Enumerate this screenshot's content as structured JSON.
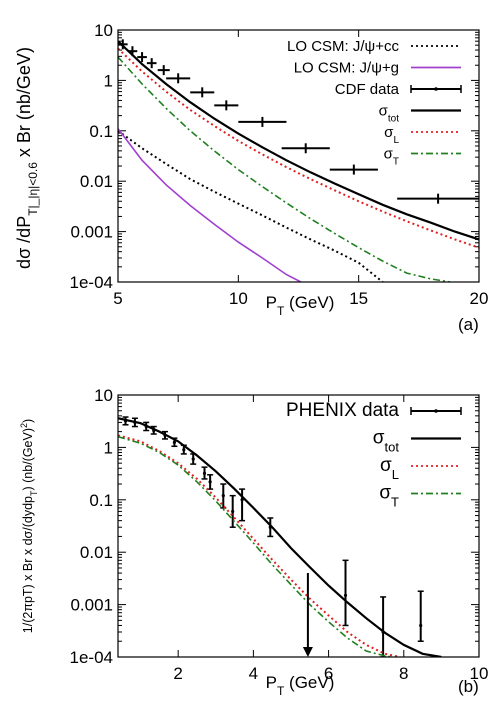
{
  "chart_data": [
    {
      "panel_label": "(a)",
      "type": "line",
      "xlabel": "P_T (GeV)",
      "ylabel": "dσ /dP_T|_|η|<0.6 x Br  (nb/GeV)",
      "xlim": [
        5,
        20
      ],
      "ylim": [
        0.0001,
        10
      ],
      "yscale": "log",
      "xticks": [
        5,
        10,
        15,
        20
      ],
      "yticks": [
        10,
        1,
        0.1,
        0.01,
        0.001,
        0.0001
      ],
      "ytick_labels": [
        "10",
        "1",
        "0.1",
        "0.01",
        "0.001",
        "1e-04"
      ],
      "legend_position": "top-right",
      "series": [
        {
          "name": "LO CSM: J/ψ+cc",
          "style": "dotted",
          "color": "#000000",
          "x": [
            5,
            6,
            7,
            8,
            9,
            10,
            11,
            12,
            13,
            14,
            15,
            16
          ],
          "y": [
            0.1,
            0.045,
            0.022,
            0.011,
            0.0062,
            0.0036,
            0.0021,
            0.0012,
            0.0007,
            0.00042,
            0.00024,
            0.0001
          ]
        },
        {
          "name": "LO CSM: J/ψ+g",
          "style": "solid",
          "color": "#a040d0",
          "x": [
            5,
            6,
            7,
            8,
            9,
            10,
            11,
            12,
            12.6
          ],
          "y": [
            0.11,
            0.026,
            0.0085,
            0.0033,
            0.0014,
            0.00062,
            0.0003,
            0.00014,
            0.0001
          ]
        },
        {
          "name": "CDF data",
          "style": "points-with-errors",
          "color": "#000000",
          "x": [
            5.2,
            5.6,
            6.0,
            6.4,
            6.9,
            7.5,
            8.5,
            9.5,
            11.0,
            12.8,
            14.8,
            18.3
          ],
          "y": [
            5.2,
            3.8,
            2.9,
            2.2,
            1.6,
            1.1,
            0.58,
            0.32,
            0.15,
            0.045,
            0.017,
            0.0045
          ],
          "xerr": [
            0.2,
            0.2,
            0.2,
            0.2,
            0.25,
            0.5,
            0.5,
            0.5,
            1.0,
            1.0,
            1.0,
            1.7
          ]
        },
        {
          "name": "σ_tot",
          "style": "solid",
          "color": "#000000",
          "x": [
            5,
            6,
            7,
            8,
            9,
            10,
            11,
            12,
            13,
            14,
            15,
            16,
            17,
            18,
            19,
            20
          ],
          "y": [
            6.0,
            2.1,
            0.85,
            0.37,
            0.175,
            0.088,
            0.047,
            0.026,
            0.015,
            0.009,
            0.0055,
            0.0034,
            0.0022,
            0.0015,
            0.001,
            0.0007
          ]
        },
        {
          "name": "σ_L",
          "style": "dotted",
          "color": "#e02020",
          "x": [
            5,
            6,
            7,
            8,
            9,
            10,
            11,
            12,
            13,
            14,
            15,
            16,
            17,
            18,
            19,
            20
          ],
          "y": [
            4.3,
            1.5,
            0.6,
            0.26,
            0.125,
            0.063,
            0.034,
            0.019,
            0.011,
            0.0066,
            0.004,
            0.0025,
            0.0016,
            0.00105,
            0.0007,
            0.00048
          ]
        },
        {
          "name": "σ_T",
          "style": "dash-dot",
          "color": "#208020",
          "x": [
            5,
            6,
            7,
            8,
            9,
            10,
            11,
            12,
            13,
            14,
            15,
            16,
            17,
            18,
            18.8
          ],
          "y": [
            2.9,
            0.85,
            0.28,
            0.1,
            0.04,
            0.017,
            0.0078,
            0.0037,
            0.0018,
            0.00092,
            0.00048,
            0.00026,
            0.00015,
            0.000115,
            0.0001
          ]
        }
      ]
    },
    {
      "panel_label": "(b)",
      "type": "line",
      "xlabel": "P_T (GeV)",
      "ylabel": "1/(2πpT) x Br x dσ/(dydp_T) (nb/(GeV)^2)",
      "xlim": [
        0.4,
        10
      ],
      "ylim": [
        0.0001,
        10
      ],
      "yscale": "log",
      "xticks": [
        2,
        4,
        6,
        8,
        10
      ],
      "yticks": [
        10,
        1,
        0.1,
        0.01,
        0.001,
        0.0001
      ],
      "ytick_labels": [
        "10",
        "1",
        "0.1",
        "0.01",
        "0.001",
        "1e-04"
      ],
      "legend_position": "top-right",
      "series": [
        {
          "name": "PHENIX data",
          "style": "points-with-errors",
          "color": "#000000",
          "x": [
            0.6,
            0.85,
            1.15,
            1.35,
            1.65,
            1.9,
            2.15,
            2.4,
            2.7,
            2.85,
            3.2,
            3.45,
            3.7,
            4.45,
            6.45,
            7.45,
            8.45
          ],
          "y": [
            3.2,
            3.0,
            2.5,
            2.1,
            1.7,
            1.25,
            0.9,
            0.6,
            0.32,
            0.22,
            0.12,
            0.06,
            0.1,
            0.03,
            0.0015,
            0.0003,
            0.0004
          ],
          "yerr_low": [
            2.7,
            2.5,
            2.1,
            1.8,
            1.45,
            1.05,
            0.75,
            0.48,
            0.25,
            0.16,
            0.07,
            0.03,
            0.04,
            0.02,
            0.0004,
            0.0001,
            0.0002
          ],
          "yerr_high": [
            3.8,
            3.6,
            3.0,
            2.5,
            2.0,
            1.5,
            1.1,
            0.75,
            0.42,
            0.3,
            0.2,
            0.12,
            0.16,
            0.045,
            0.007,
            0.0014,
            0.0018
          ]
        },
        {
          "name": "σ_tot",
          "style": "solid",
          "color": "#000000",
          "x": [
            0.4,
            1,
            1.5,
            2,
            2.5,
            3,
            3.5,
            4,
            4.5,
            5,
            5.5,
            6,
            6.5,
            7,
            7.5,
            8,
            8.5,
            9
          ],
          "y": [
            3.6,
            2.9,
            2.0,
            1.3,
            0.7,
            0.35,
            0.16,
            0.07,
            0.03,
            0.012,
            0.0052,
            0.0023,
            0.0011,
            0.00055,
            0.00029,
            0.00017,
            0.000115,
            0.0001
          ]
        },
        {
          "name": "σ_L",
          "style": "dotted",
          "color": "#e02020",
          "x": [
            0.4,
            1,
            1.5,
            2,
            2.5,
            3,
            3.5,
            4,
            4.5,
            5,
            5.5,
            6,
            6.5,
            7,
            7.5,
            7.9
          ],
          "y": [
            1.7,
            1.3,
            0.85,
            0.5,
            0.25,
            0.11,
            0.045,
            0.018,
            0.0072,
            0.003,
            0.0013,
            0.00062,
            0.0003,
            0.00017,
            0.000115,
            0.0001
          ]
        },
        {
          "name": "σ_T",
          "style": "dash-dot",
          "color": "#208020",
          "x": [
            0.4,
            1,
            1.5,
            2,
            2.5,
            3,
            3.5,
            4,
            4.5,
            5,
            5.5,
            6,
            6.5,
            7,
            7.5,
            7.7
          ],
          "y": [
            1.6,
            1.2,
            0.8,
            0.46,
            0.22,
            0.095,
            0.038,
            0.015,
            0.0058,
            0.0024,
            0.001,
            0.00047,
            0.00023,
            0.00013,
            0.000105,
            0.0001
          ]
        }
      ],
      "upper_limit_arrow": {
        "x": 5.45,
        "y_from": 0.004,
        "y_to": 0.0001
      }
    }
  ]
}
